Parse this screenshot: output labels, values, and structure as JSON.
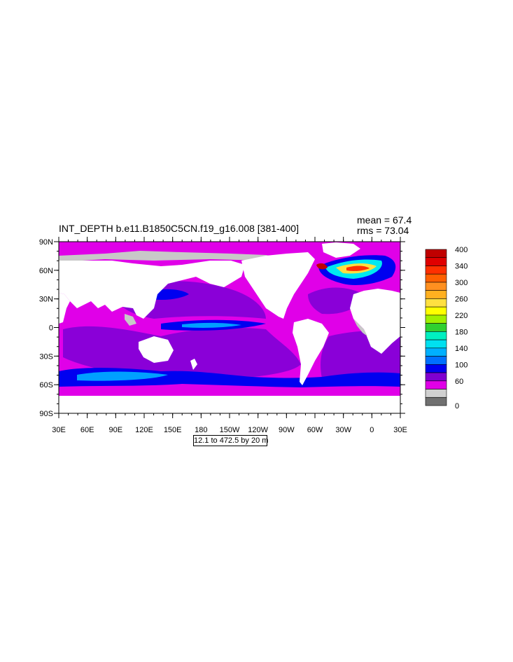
{
  "title": "INT_DEPTH b.e11.B1850C5CN.f19_g16.008 [381-400]",
  "stats": {
    "mean_label": "mean =",
    "mean_value": "67.4",
    "rms_label": "rms =",
    "rms_value": "73.04"
  },
  "lat_labels": [
    "90N",
    "60N",
    "30N",
    "0",
    "30S",
    "60S",
    "90S"
  ],
  "lon_labels": [
    "30E",
    "60E",
    "90E",
    "120E",
    "150E",
    "180",
    "150W",
    "120W",
    "90W",
    "60W",
    "30W",
    "0",
    "30E"
  ],
  "colorbar": {
    "labels": [
      "400",
      "340",
      "300",
      "260",
      "220",
      "180",
      "140",
      "100",
      "60",
      "0"
    ],
    "colors": [
      "#c00000",
      "#e00000",
      "#ff3000",
      "#ff6000",
      "#ff9020",
      "#ffb020",
      "#ffe040",
      "#ffff00",
      "#a0f000",
      "#30d030",
      "#00f0c0",
      "#00e0f0",
      "#00b0ff",
      "#0070ff",
      "#0000f0",
      "#8000d0",
      "#e000e8",
      "#d0d0d0",
      "#707070"
    ]
  },
  "footer": "12.1 to 472.5 by 20 m",
  "colors": {
    "land": "#ffffff",
    "ice": "#c8c8c8",
    "low": "#e000e8",
    "mid": "#8a00d8",
    "high": "#0000f0",
    "high2": "#00a0ff",
    "deep": "#00e8f0"
  }
}
